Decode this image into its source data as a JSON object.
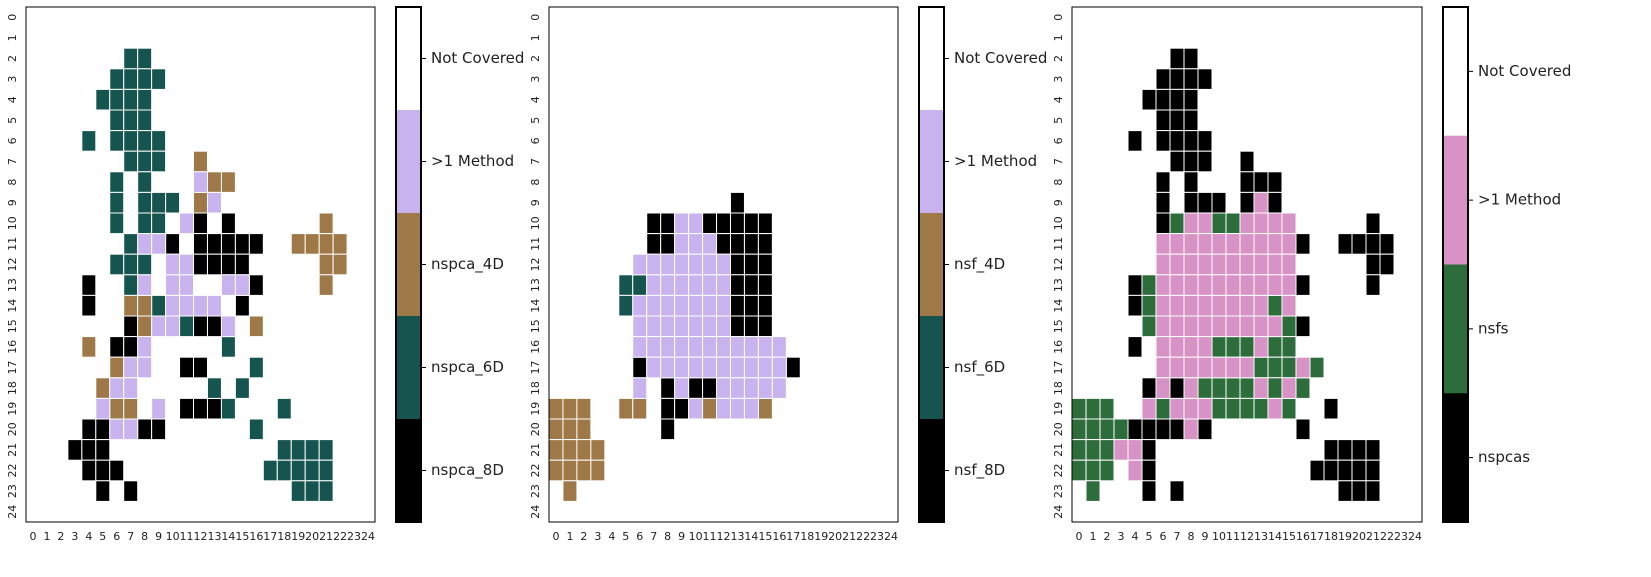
{
  "colors": {
    "not_covered": "#ffffff",
    "multi_method": "#c9b3ef",
    "method_4d": "#9e7846",
    "method_6d": "#16554f",
    "method_8d": "#000000",
    "nspcas": "#000000",
    "nsfs": "#2d6c3b",
    "multi_method_pink": "#d792c6",
    "cell_border": "#ffffff",
    "frame": "#000000"
  },
  "chart_data": [
    {
      "type": "heatmap",
      "grid_size": 25,
      "x_ticks": [
        "0",
        "1",
        "2",
        "3",
        "4",
        "5",
        "6",
        "7",
        "8",
        "9",
        "10",
        "11",
        "12",
        "13",
        "14",
        "15",
        "16",
        "17",
        "18",
        "19",
        "20",
        "21",
        "22",
        "23",
        "24"
      ],
      "y_ticks": [
        "0",
        "1",
        "2",
        "3",
        "4",
        "5",
        "6",
        "7",
        "8",
        "9",
        "10",
        "11",
        "12",
        "13",
        "14",
        "15",
        "16",
        "17",
        "18",
        "19",
        "20",
        "21",
        "22",
        "23",
        "24"
      ],
      "legend": [
        "Not Covered",
        ">1 Method",
        "nspca_4D",
        "nspca_6D",
        "nspca_8D"
      ],
      "legend_colors": [
        "#ffffff",
        "#c9b3ef",
        "#9e7846",
        "#16554f",
        "#000000"
      ],
      "legend_placement": "right",
      "grid": false,
      "cells": {
        "8D": [
          "10,12",
          "10,14",
          "11,10",
          "11,12",
          "11,13",
          "11,14",
          "11,15",
          "11,16",
          "12,12",
          "12,13",
          "12,14",
          "12,15",
          "13,4",
          "13,16",
          "14,4",
          "14,15",
          "15,7",
          "15,12",
          "15,13",
          "16,6",
          "16,7",
          "17,11",
          "17,12",
          "19,11",
          "19,12",
          "19,13",
          "19,18",
          "20,4",
          "20,5",
          "20,8",
          "20,9",
          "21,3",
          "21,4",
          "21,5",
          "22,4",
          "22,5",
          "22,6",
          "23,5",
          "23,7"
        ],
        "6D": [
          "2,7",
          "2,8",
          "3,6",
          "3,7",
          "3,8",
          "3,9",
          "4,5",
          "4,6",
          "4,7",
          "4,8",
          "5,6",
          "5,7",
          "5,8",
          "6,4",
          "6,6",
          "6,7",
          "6,8",
          "6,9",
          "7,7",
          "7,8",
          "7,9",
          "8,6",
          "8,8",
          "9,6",
          "9,8",
          "9,9",
          "9,10",
          "10,6",
          "10,8",
          "10,9",
          "11,7",
          "12,6",
          "12,7",
          "12,8",
          "13,7",
          "14,9",
          "15,11",
          "16,14",
          "17,16",
          "18,13",
          "18,15",
          "19,14",
          "19,18",
          "20,16",
          "21,18",
          "21,19",
          "21,20",
          "21,21",
          "22,17",
          "22,18",
          "22,19",
          "22,20",
          "22,21",
          "23,19",
          "23,20",
          "23,21"
        ],
        "4D": [
          "7,12",
          "8,13",
          "8,14",
          "9,12",
          "10,21",
          "11,19",
          "11,20",
          "11,21",
          "11,22",
          "12,21",
          "12,22",
          "13,21",
          "14,7",
          "14,8",
          "15,8",
          "15,16",
          "16,4",
          "17,6",
          "18,5",
          "19,6",
          "19,7"
        ],
        "multi": [
          "8,12",
          "9,13",
          "10,11",
          "11,8",
          "11,9",
          "12,10",
          "12,11",
          "13,8",
          "13,10",
          "13,11",
          "13,14",
          "13,15",
          "14,10",
          "14,11",
          "14,12",
          "14,13",
          "15,9",
          "15,10",
          "15,14",
          "16,8",
          "17,7",
          "17,8",
          "18,6",
          "18,7",
          "19,5",
          "19,9",
          "20,6",
          "20,7"
        ]
      }
    },
    {
      "type": "heatmap",
      "grid_size": 25,
      "x_ticks": [
        "0",
        "1",
        "2",
        "3",
        "4",
        "5",
        "6",
        "7",
        "8",
        "9",
        "10",
        "11",
        "12",
        "13",
        "14",
        "15",
        "16",
        "17",
        "18",
        "19",
        "20",
        "21",
        "22",
        "23",
        "24"
      ],
      "y_ticks": [
        "0",
        "1",
        "2",
        "3",
        "4",
        "5",
        "6",
        "7",
        "8",
        "9",
        "10",
        "11",
        "12",
        "13",
        "14",
        "15",
        "16",
        "17",
        "18",
        "19",
        "20",
        "21",
        "22",
        "23",
        "24"
      ],
      "legend": [
        "Not Covered",
        ">1 Method",
        "nsf_4D",
        "nsf_6D",
        "nsf_8D"
      ],
      "legend_colors": [
        "#ffffff",
        "#c9b3ef",
        "#9e7846",
        "#16554f",
        "#000000"
      ],
      "legend_placement": "right",
      "grid": false,
      "cells": {
        "8D": [
          "9,13",
          "10,7",
          "10,8",
          "10,11",
          "10,12",
          "10,13",
          "10,14",
          "10,15",
          "11,7",
          "11,8",
          "11,12",
          "11,13",
          "11,14",
          "11,15",
          "12,13",
          "12,14",
          "12,15",
          "13,13",
          "13,14",
          "13,15",
          "14,13",
          "14,14",
          "14,15",
          "15,13",
          "15,14",
          "15,15",
          "17,6",
          "17,17",
          "18,8",
          "18,10",
          "18,11",
          "19,8",
          "19,9",
          "20,8"
        ],
        "6D": [
          "13,5",
          "13,6",
          "14,5"
        ],
        "4D": [
          "19,0",
          "19,1",
          "19,2",
          "19,5",
          "19,6",
          "19,11",
          "19,15",
          "20,0",
          "20,1",
          "20,2",
          "21,0",
          "21,1",
          "21,2",
          "21,3",
          "22,0",
          "22,1",
          "22,2",
          "22,3",
          "23,1"
        ],
        "multi": [
          "10,9",
          "10,10",
          "11,9",
          "11,10",
          "11,11",
          "12,6",
          "12,7",
          "12,8",
          "12,9",
          "12,10",
          "12,11",
          "12,12",
          "13,7",
          "13,8",
          "13,9",
          "13,10",
          "13,11",
          "13,12",
          "14,6",
          "14,7",
          "14,8",
          "14,9",
          "14,10",
          "14,11",
          "14,12",
          "15,6",
          "15,7",
          "15,8",
          "15,9",
          "15,10",
          "15,11",
          "15,12",
          "16,6",
          "16,7",
          "16,8",
          "16,9",
          "16,10",
          "16,11",
          "16,12",
          "16,13",
          "16,14",
          "16,15",
          "16,16",
          "17,7",
          "17,8",
          "17,9",
          "17,10",
          "17,11",
          "17,12",
          "17,13",
          "17,14",
          "17,15",
          "17,16",
          "18,6",
          "18,9",
          "18,12",
          "18,13",
          "18,14",
          "18,15",
          "18,16",
          "19,10",
          "19,12",
          "19,13",
          "19,14"
        ]
      }
    },
    {
      "type": "heatmap",
      "grid_size": 25,
      "x_ticks": [
        "0",
        "1",
        "2",
        "3",
        "4",
        "5",
        "6",
        "7",
        "8",
        "9",
        "10",
        "11",
        "12",
        "13",
        "14",
        "15",
        "16",
        "17",
        "18",
        "19",
        "20",
        "21",
        "22",
        "23",
        "24"
      ],
      "y_ticks": [
        "0",
        "1",
        "2",
        "3",
        "4",
        "5",
        "6",
        "7",
        "8",
        "9",
        "10",
        "11",
        "12",
        "13",
        "14",
        "15",
        "16",
        "17",
        "18",
        "19",
        "20",
        "21",
        "22",
        "23",
        "24"
      ],
      "legend": [
        "Not Covered",
        ">1 Method",
        "nsfs",
        "nspcas"
      ],
      "legend_colors": [
        "#ffffff",
        "#d792c6",
        "#2d6c3b",
        "#000000"
      ],
      "legend_placement": "right",
      "grid": false,
      "cells": {
        "nspcas": [
          "2,7",
          "2,8",
          "3,6",
          "3,7",
          "3,8",
          "3,9",
          "4,5",
          "4,6",
          "4,7",
          "4,8",
          "5,6",
          "5,7",
          "5,8",
          "6,4",
          "6,6",
          "6,7",
          "6,8",
          "6,9",
          "7,7",
          "7,8",
          "7,9",
          "7,12",
          "8,6",
          "8,8",
          "8,12",
          "8,13",
          "8,14",
          "9,6",
          "9,8",
          "9,9",
          "9,10",
          "9,12",
          "9,14",
          "10,6",
          "10,21",
          "11,16",
          "11,19",
          "11,20",
          "11,21",
          "11,22",
          "12,21",
          "12,22",
          "13,4",
          "13,16",
          "13,21",
          "14,4",
          "15,16",
          "16,4",
          "18,5",
          "18,7",
          "19,18",
          "20,4",
          "20,5",
          "20,6",
          "20,7",
          "20,9",
          "20,16",
          "21,5",
          "21,18",
          "21,19",
          "21,20",
          "21,21",
          "22,5",
          "22,17",
          "22,18",
          "22,19",
          "22,20",
          "22,21",
          "23,5",
          "23,7",
          "23,19",
          "23,20",
          "23,21"
        ],
        "nsfs": [
          "10,7",
          "10,10",
          "10,11",
          "13,5",
          "14,5",
          "14,14",
          "15,5",
          "15,15",
          "16,10",
          "16,11",
          "16,12",
          "16,14",
          "16,15",
          "17,13",
          "17,14",
          "17,15",
          "17,17",
          "18,9",
          "18,10",
          "18,11",
          "18,12",
          "18,14",
          "18,16",
          "19,0",
          "19,1",
          "19,2",
          "19,6",
          "19,10",
          "19,11",
          "19,12",
          "19,13",
          "19,15",
          "20,0",
          "20,1",
          "20,2",
          "20,3",
          "21,0",
          "21,1",
          "21,2",
          "22,0",
          "22,1",
          "22,2",
          "23,1"
        ],
        "multi": [
          "9,13",
          "10,8",
          "10,9",
          "10,12",
          "10,13",
          "10,14",
          "10,15",
          "11,6",
          "11,7",
          "11,8",
          "11,9",
          "11,10",
          "11,11",
          "11,12",
          "11,13",
          "11,14",
          "11,15",
          "12,6",
          "12,7",
          "12,8",
          "12,9",
          "12,10",
          "12,11",
          "12,12",
          "12,13",
          "12,14",
          "12,15",
          "13,6",
          "13,7",
          "13,8",
          "13,9",
          "13,10",
          "13,11",
          "13,12",
          "13,13",
          "13,14",
          "13,15",
          "14,6",
          "14,7",
          "14,8",
          "14,9",
          "14,10",
          "14,11",
          "14,12",
          "14,13",
          "14,15",
          "15,6",
          "15,7",
          "15,8",
          "15,9",
          "15,10",
          "15,11",
          "15,12",
          "15,13",
          "15,14",
          "16,6",
          "16,7",
          "16,8",
          "16,9",
          "16,13",
          "17,6",
          "17,7",
          "17,8",
          "17,9",
          "17,10",
          "17,11",
          "17,12",
          "17,16",
          "18,6",
          "18,8",
          "18,13",
          "18,15",
          "19,5",
          "19,7",
          "19,8",
          "19,9",
          "19,14",
          "20,8",
          "21,3",
          "21,4",
          "22,4"
        ]
      }
    }
  ]
}
